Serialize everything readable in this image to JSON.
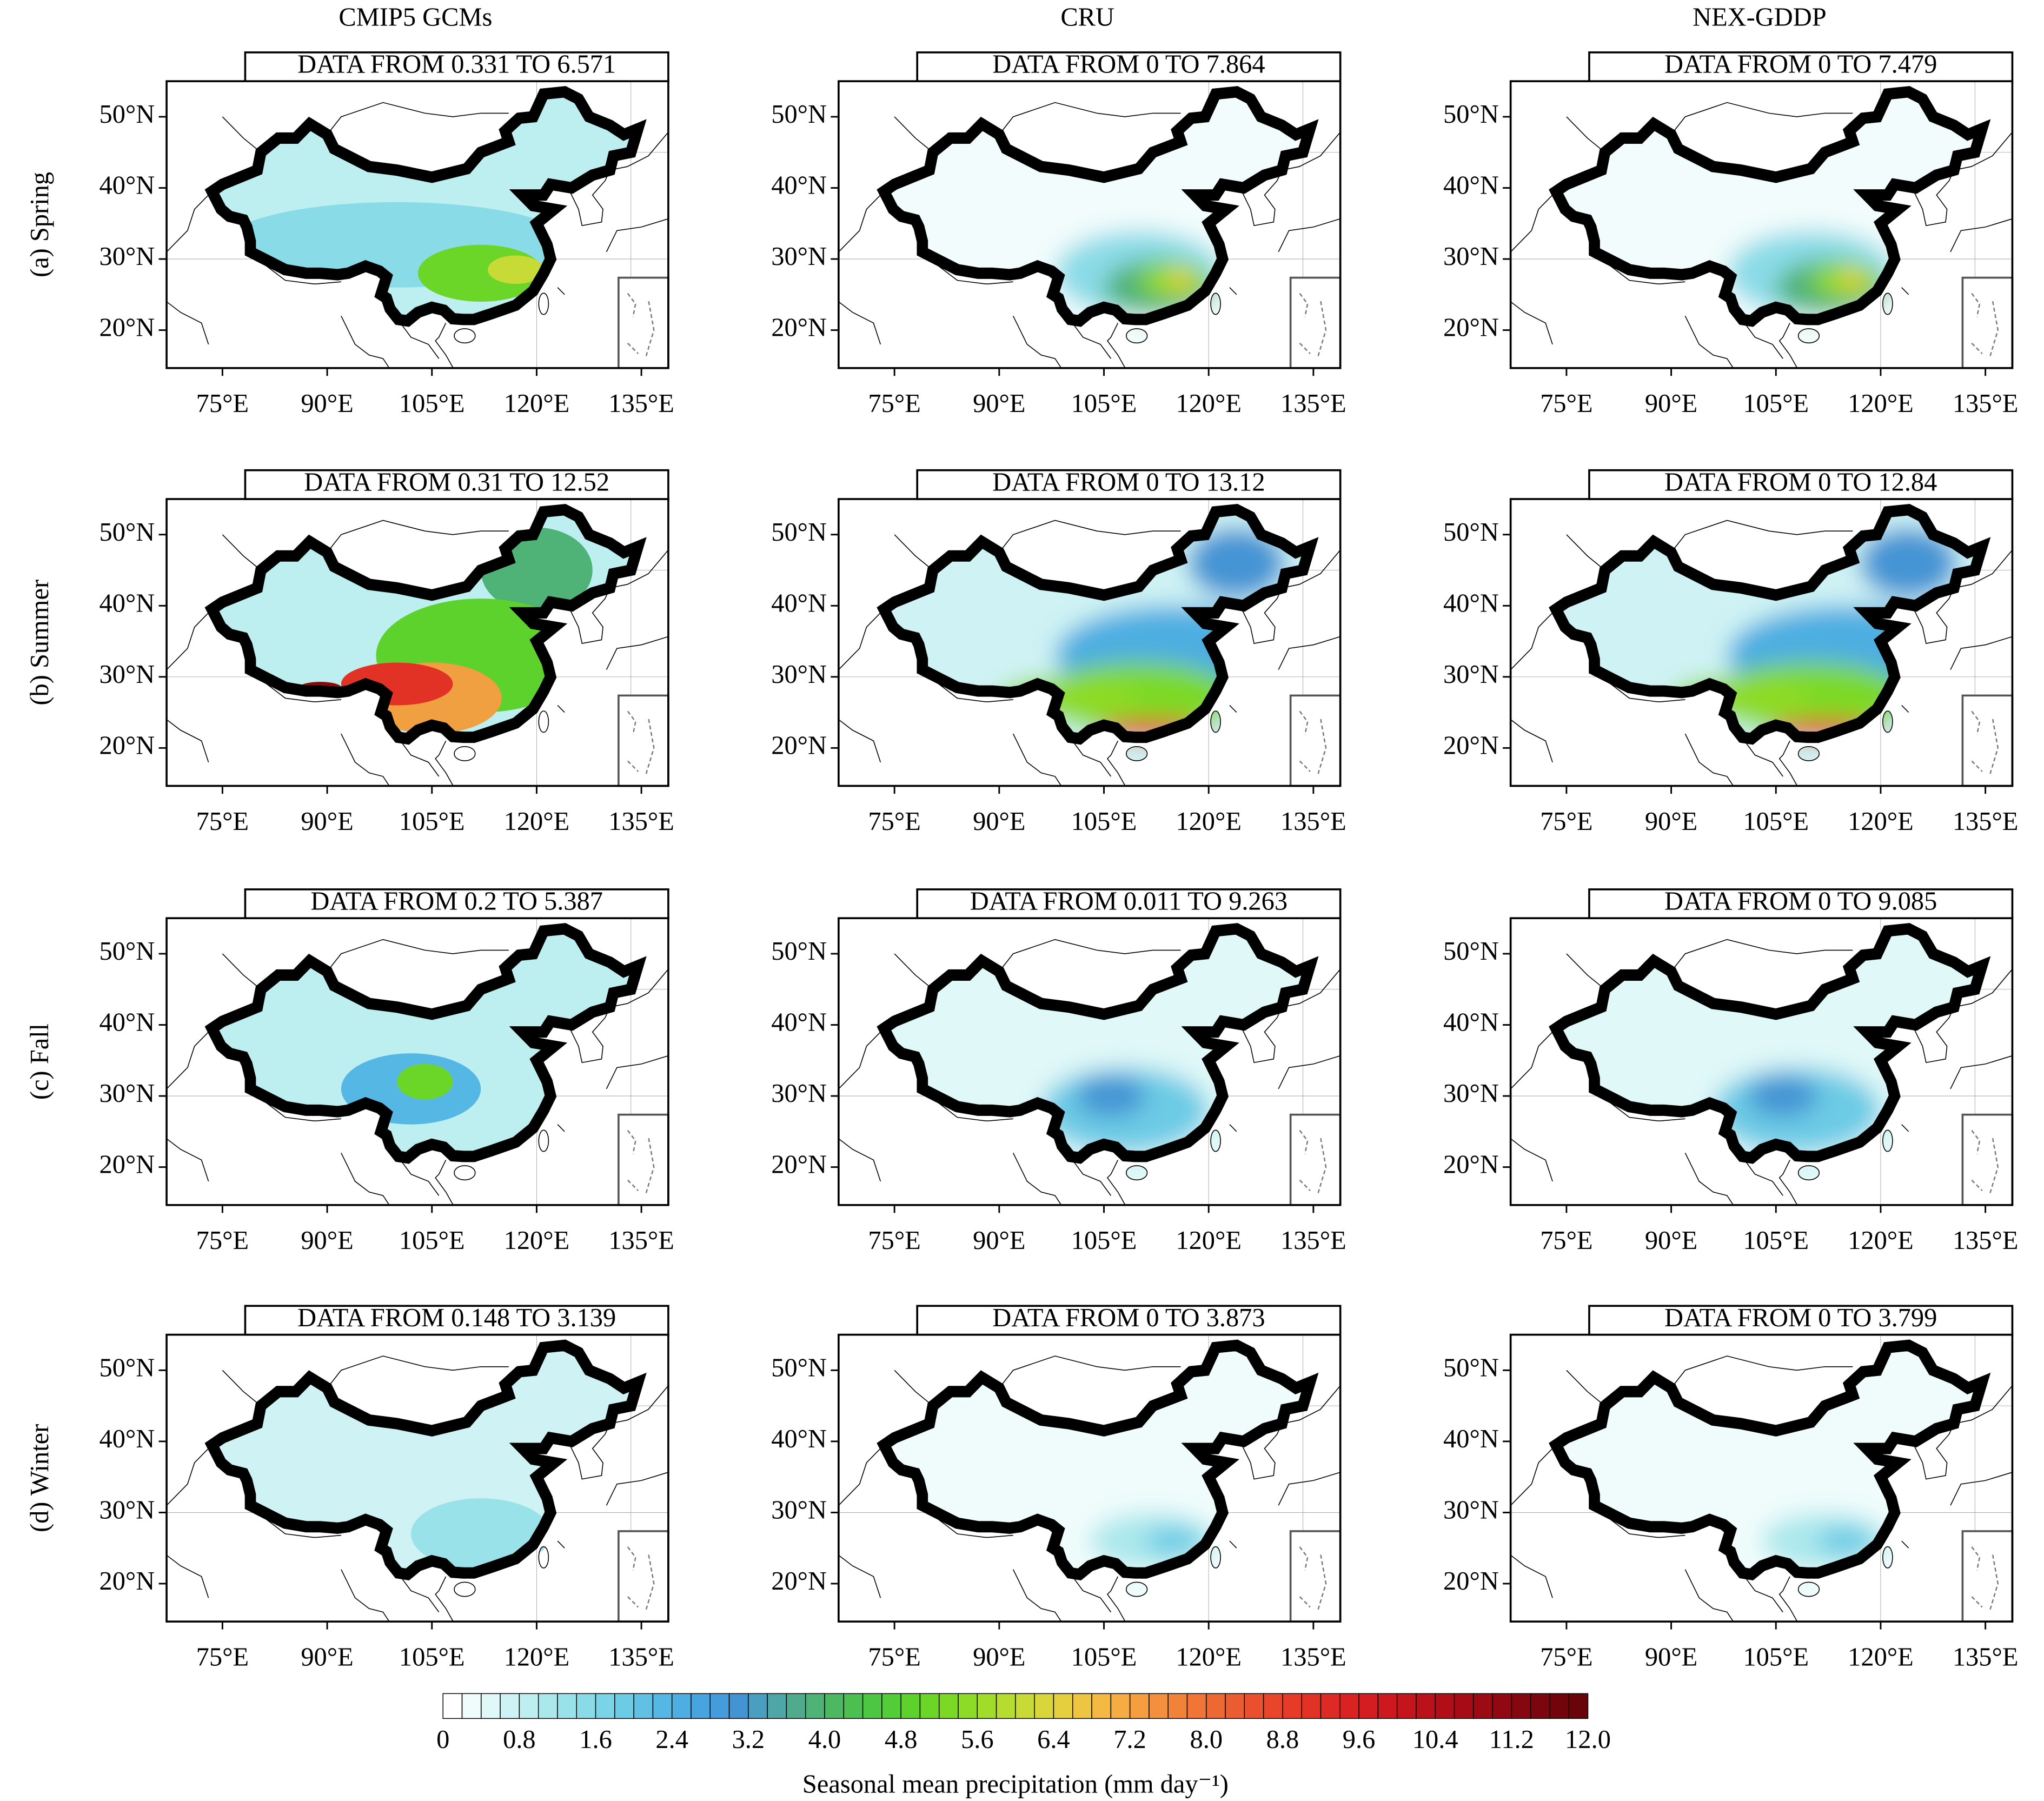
{
  "column_titles": [
    "CMIP5 GCMs",
    "CRU",
    "NEX-GDDP"
  ],
  "row_labels": [
    "(a) Spring",
    "(b) Summer",
    "(c) Fall",
    "(d) Winter"
  ],
  "panels": [
    [
      "DATA FROM 0.331 TO 6.571",
      "DATA FROM 0 TO 7.864",
      "DATA FROM 0 TO 7.479"
    ],
    [
      "DATA FROM 0.31 TO 12.52",
      "DATA FROM 0 TO 13.12",
      "DATA FROM 0 TO 12.84"
    ],
    [
      "DATA FROM 0.2 TO 5.387",
      "DATA FROM 0.011 TO 9.263",
      "DATA FROM 0 TO 9.085"
    ],
    [
      "DATA FROM 0.148 TO 3.139",
      "DATA FROM 0 TO 3.873",
      "DATA FROM 0 TO 3.799"
    ]
  ],
  "lat_labels": [
    "50°N",
    "40°N",
    "30°N",
    "20°N"
  ],
  "lon_labels": [
    "75°E",
    "90°E",
    "105°E",
    "120°E",
    "135°E"
  ],
  "colorbar": {
    "title": "Seasonal mean precipitation (mm day⁻¹)",
    "ticks": [
      0,
      0.8,
      1.6,
      2.4,
      3.2,
      {
        "value": 4,
        "label": "4.0"
      },
      4.8,
      5.6,
      6.4,
      7.2,
      {
        "value": 8,
        "label": "8.0"
      },
      8.8,
      9.6,
      10.4,
      11.2,
      {
        "value": 12,
        "label": "12.0"
      }
    ],
    "colors": [
      "#ffffff",
      "#f0fcfc",
      "#e0f8f8",
      "#cff3f4",
      "#bdeef0",
      "#abe8ec",
      "#9ae2ea",
      "#8adbe8",
      "#7ad3e6",
      "#6ccbe5",
      "#60c1e4",
      "#55b7e3",
      "#4eaee1",
      "#48a4de",
      "#459cda",
      "#4494d4",
      "#4a9ec0",
      "#4fa6a6",
      "#50ab8e",
      "#4fb277",
      "#4db862",
      "#4bbf50",
      "#4cc643",
      "#52cc37",
      "#5dd22d",
      "#6bd628",
      "#7bd926",
      "#8edb27",
      "#a2dc2b",
      "#b6dc30",
      "#c8da35",
      "#d8d63a",
      "#e5cf3e",
      "#eec541",
      "#f3b942",
      "#f5ac42",
      "#f59e40",
      "#f4903d",
      "#f2823a",
      "#f07537",
      "#ee6834",
      "#ec5c31",
      "#ea502e",
      "#e8452b",
      "#e53b28",
      "#e23226",
      "#de2a24",
      "#d92322",
      "#d31d20",
      "#cc181e",
      "#c4141c",
      "#bb111a",
      "#b10e18",
      "#a70c16",
      "#9c0a14",
      "#910812",
      "#860710",
      "#7c060e",
      "#72050c",
      "#68040a"
    ]
  }
}
